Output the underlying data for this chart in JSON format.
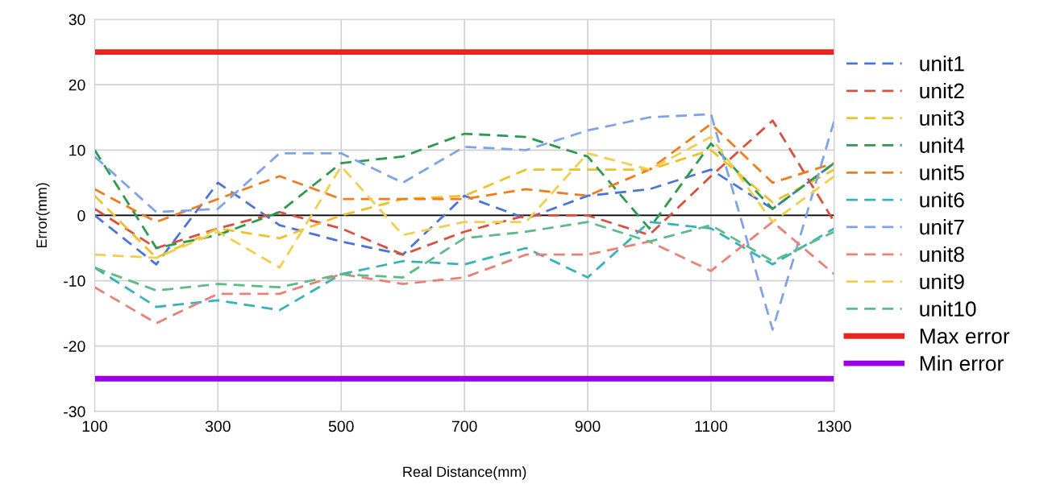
{
  "chart_data": {
    "type": "line",
    "xlabel": "Real Distance(mm)",
    "ylabel": "Error(mm)",
    "x": [
      100,
      200,
      300,
      400,
      500,
      600,
      700,
      800,
      900,
      1000,
      1100,
      1200,
      1300
    ],
    "xlim": [
      100,
      1300
    ],
    "xticks": [
      100,
      300,
      500,
      700,
      900,
      1100,
      1300
    ],
    "ylim": [
      -30,
      30
    ],
    "yticks": [
      -30,
      -20,
      -10,
      0,
      10,
      20,
      30
    ],
    "grid": true,
    "legend": "right",
    "line_style": "dashed",
    "ref_lines": [
      {
        "axis": "y",
        "value": 0,
        "color": "#000000",
        "line_style": "solid"
      }
    ],
    "series": [
      {
        "name": "unit1",
        "color": "#4a74d9",
        "values": [
          0,
          -7.5,
          5,
          -1.5,
          -4,
          -6,
          3,
          -0.5,
          3,
          4,
          7,
          1,
          8
        ]
      },
      {
        "name": "unit2",
        "color": "#d9503f",
        "values": [
          1,
          -5,
          -2,
          0.5,
          -2,
          -6,
          -2.5,
          0,
          0,
          -3,
          6,
          14.5,
          -1
        ]
      },
      {
        "name": "unit3",
        "color": "#efc02b",
        "values": [
          3,
          -6.5,
          -2,
          -3.5,
          0,
          2.5,
          3,
          7,
          7,
          7,
          10,
          2,
          7
        ]
      },
      {
        "name": "unit4",
        "color": "#2e9a4e",
        "values": [
          10,
          -5,
          -3,
          0.5,
          8,
          9,
          12.5,
          12,
          9,
          -2,
          11,
          1,
          8
        ]
      },
      {
        "name": "unit5",
        "color": "#ef7c1f",
        "values": [
          4,
          -1,
          2.5,
          6,
          2.5,
          2.5,
          2.5,
          4,
          3,
          7,
          14,
          5,
          8
        ]
      },
      {
        "name": "unit6",
        "color": "#37b2bb",
        "values": [
          -8,
          -14,
          -13,
          -14.5,
          -9,
          -7,
          -7.5,
          -5,
          -9.5,
          -1,
          -2,
          -7.5,
          -2
        ]
      },
      {
        "name": "unit7",
        "color": "#7fa3e8",
        "values": [
          9,
          0.5,
          1,
          9.5,
          9.5,
          5,
          10.5,
          10,
          13,
          15,
          15.5,
          -17.5,
          14.5
        ]
      },
      {
        "name": "unit8",
        "color": "#e88276",
        "values": [
          -11,
          -16.5,
          -12,
          -12,
          -9,
          -10.5,
          -9.5,
          -6,
          -6,
          -4,
          -8.5,
          -1,
          -9
        ]
      },
      {
        "name": "unit9",
        "color": "#f3cd4c",
        "values": [
          -6,
          -6.5,
          -2.5,
          -8,
          7.5,
          -3,
          -1,
          -1,
          9.5,
          7,
          12,
          -1,
          6
        ]
      },
      {
        "name": "unit10",
        "color": "#5cbb86",
        "values": [
          -8,
          -11.5,
          -10.5,
          -11,
          -9,
          -9.5,
          -3.5,
          -2.5,
          -1,
          -4,
          -1.5,
          -7,
          -2.5
        ]
      },
      {
        "name": "Max error",
        "color": "#e8241c",
        "line_style": "solid",
        "values": [
          25,
          25,
          25,
          25,
          25,
          25,
          25,
          25,
          25,
          25,
          25,
          25,
          25
        ]
      },
      {
        "name": "Min error",
        "color": "#9a00e6",
        "line_style": "solid",
        "values": [
          -25,
          -25,
          -25,
          -25,
          -25,
          -25,
          -25,
          -25,
          -25,
          -25,
          -25,
          -25,
          -25
        ]
      }
    ]
  }
}
